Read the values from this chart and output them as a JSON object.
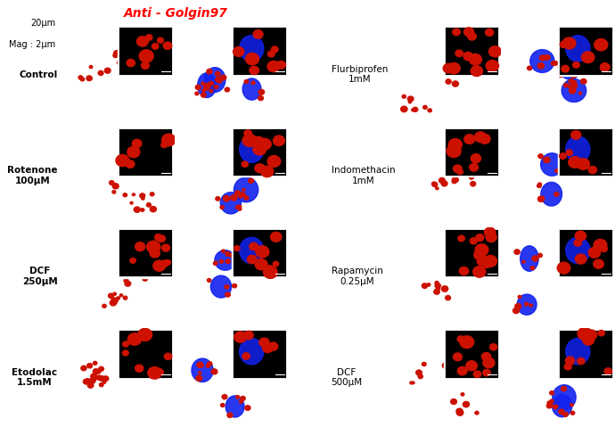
{
  "title": "Anti - Golgin97",
  "title_color": "#ff0000",
  "title_fontsize": 10,
  "scale_label_line1": "20μm",
  "scale_label_line2": "Mag : 2μm",
  "scale_fontsize": 7.0,
  "left_labels": [
    {
      "text": "Control",
      "bold": true
    },
    {
      "text": "Rotenone\n100μM",
      "bold": true
    },
    {
      "text": "DCF\n250μM",
      "bold": true
    },
    {
      "text": "Etodolac\n1.5mM",
      "bold": true
    }
  ],
  "right_labels": [
    {
      "text": "Flurbiprofen\n1mM"
    },
    {
      "text": "Indomethacin\n1mM"
    },
    {
      "text": "Rapamycin\n0.25μM"
    },
    {
      "text": "DCF\n500μM"
    }
  ],
  "label_fontsize": 7.5,
  "panel_bg": "#000000",
  "fig_bg": "#ffffff",
  "red_color": "#cc1100",
  "blue_color": "#1122ee",
  "n_rows": 4
}
